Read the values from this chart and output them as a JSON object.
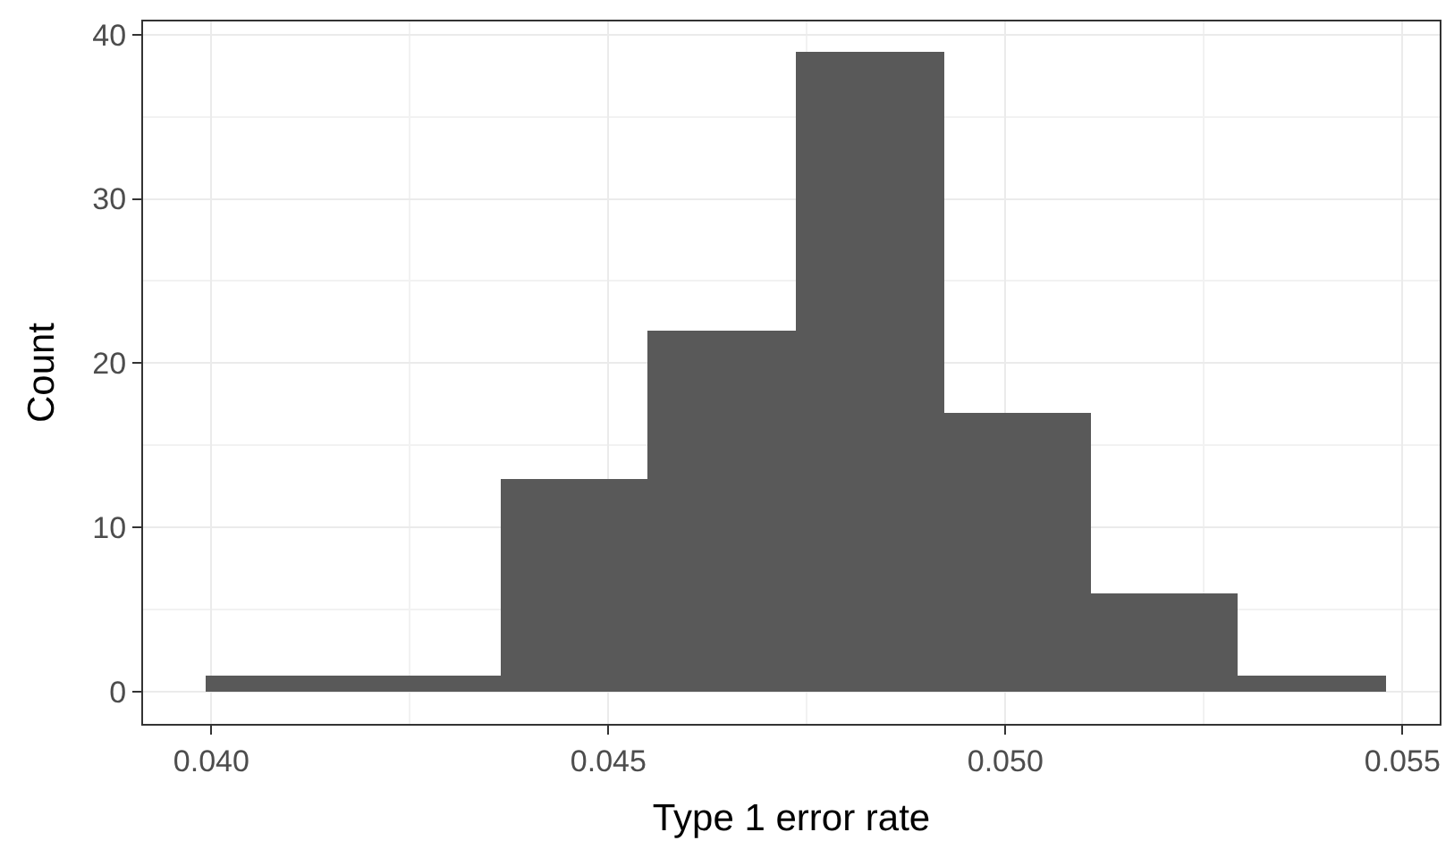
{
  "chart_data": {
    "type": "histogram",
    "xlabel": "Type 1 error rate",
    "ylabel": "Count",
    "bins": [
      0.03993,
      0.04179,
      0.04365,
      0.0455,
      0.04736,
      0.04922,
      0.05107,
      0.05293,
      0.05479
    ],
    "values": [
      1,
      1,
      13,
      22,
      39,
      17,
      6,
      1
    ],
    "color": "#595959",
    "xlim": [
      0.03914,
      0.05547
    ],
    "xticks": [
      {
        "value": 0.04,
        "label": "0.040"
      },
      {
        "value": 0.045,
        "label": "0.045"
      },
      {
        "value": 0.05,
        "label": "0.050"
      },
      {
        "value": 0.055,
        "label": "0.055"
      }
    ],
    "ylim": [
      -1.96,
      40.8
    ],
    "yticks": [
      0,
      10,
      20,
      30,
      40
    ],
    "grid": true
  }
}
